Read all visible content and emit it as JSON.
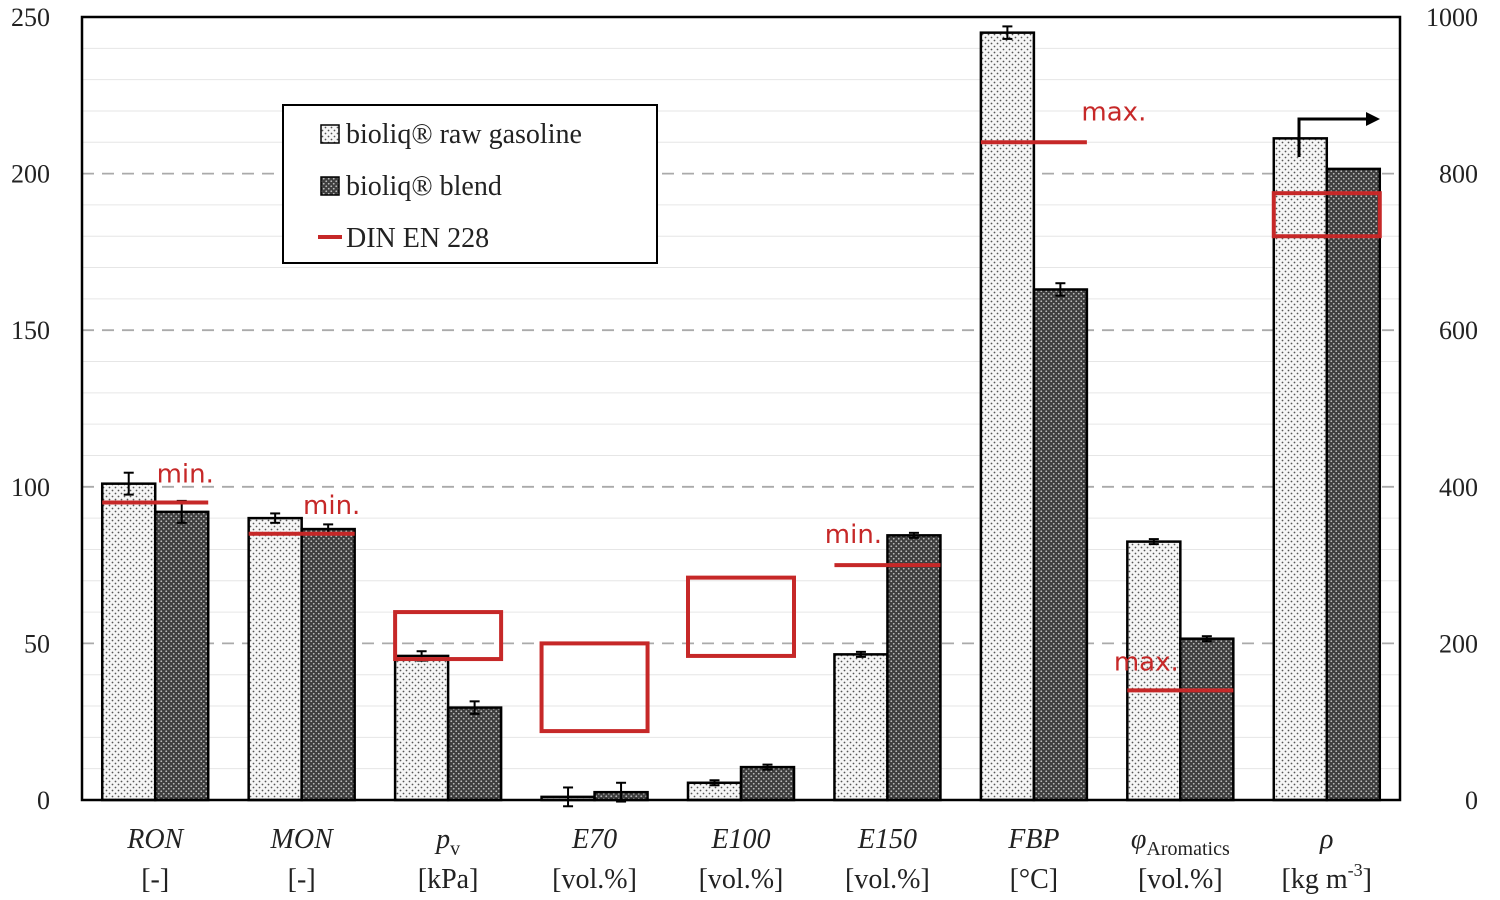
{
  "chart_data": {
    "type": "bar",
    "categories": [
      {
        "name": "RON",
        "sub": "",
        "unit": "[-]",
        "axis": "left"
      },
      {
        "name": "MON",
        "sub": "",
        "unit": "[-]",
        "axis": "left"
      },
      {
        "name": "p",
        "sub": "v",
        "unit": "[kPa]",
        "axis": "left"
      },
      {
        "name": "E70",
        "sub": "",
        "unit": "[vol.%]",
        "axis": "left"
      },
      {
        "name": "E100",
        "sub": "",
        "unit": "[vol.%]",
        "axis": "left"
      },
      {
        "name": "E150",
        "sub": "",
        "unit": "[vol.%]",
        "axis": "left"
      },
      {
        "name": "FBP",
        "sub": "",
        "unit": "[°C]",
        "axis": "left"
      },
      {
        "name": "φ",
        "sub": "Aromatics",
        "unit": "[vol.%]",
        "axis": "left"
      },
      {
        "name": "ρ",
        "sub": "",
        "unit": "[kg m",
        "unit_sup": "-3",
        "unit_tail": "]",
        "axis": "right"
      }
    ],
    "series": [
      {
        "name": "bioliq® raw gasoline",
        "values": [
          101,
          90,
          46,
          1,
          5.5,
          46.5,
          245,
          82.5,
          845
        ],
        "errors": [
          3.5,
          1.5,
          1.5,
          3,
          0.8,
          0.8,
          2,
          0.8,
          0
        ]
      },
      {
        "name": "bioliq® blend",
        "values": [
          92,
          86.5,
          29.5,
          2.5,
          10.5,
          84.5,
          163,
          51.5,
          806
        ],
        "errors": [
          3.5,
          1.5,
          2,
          3,
          0.8,
          0.8,
          2,
          0.8,
          0
        ]
      }
    ],
    "norm": {
      "name": "DIN EN 228",
      "limits": [
        {
          "cat": 0,
          "type": "line",
          "value": 95,
          "label": "min."
        },
        {
          "cat": 1,
          "type": "line",
          "value": 85,
          "label": "min."
        },
        {
          "cat": 2,
          "type": "range",
          "min": 45,
          "max": 60
        },
        {
          "cat": 3,
          "type": "range",
          "min": 22,
          "max": 50
        },
        {
          "cat": 4,
          "type": "range",
          "min": 46,
          "max": 71
        },
        {
          "cat": 5,
          "type": "line",
          "value": 75,
          "label": "min."
        },
        {
          "cat": 6,
          "type": "line",
          "value": 210,
          "label": "max."
        },
        {
          "cat": 7,
          "type": "line",
          "value": 35,
          "label": "max."
        },
        {
          "cat": 8,
          "type": "range",
          "min": 720,
          "max": 775
        }
      ]
    },
    "left_axis": {
      "ylim": [
        0,
        250
      ],
      "ticks": [
        0,
        50,
        100,
        150,
        200,
        250
      ]
    },
    "right_axis": {
      "ylim": [
        0,
        1000
      ],
      "ticks": [
        0,
        200,
        400,
        600,
        800,
        1000
      ]
    },
    "grid": true,
    "legend_placement": "top-left",
    "colors": {
      "norm": "#c62828",
      "raw_fill": "#f4f4f4",
      "blend_fill": "#5a5a5a",
      "grid": "#aaaaaa"
    }
  }
}
